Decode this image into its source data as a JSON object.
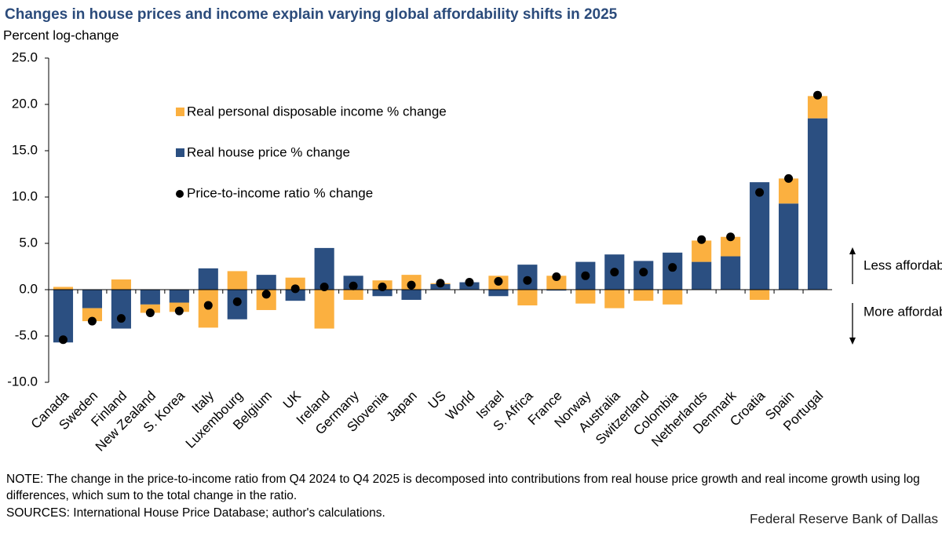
{
  "chart_data": {
    "type": "bar",
    "stacked": true,
    "title": "Changes in house prices and income explain varying global affordability shifts in 2025",
    "y_label": "Percent log-change",
    "categories": [
      "Canada",
      "Sweden",
      "Finland",
      "New Zealand",
      "S. Korea",
      "Italy",
      "Luxembourg",
      "Belgium",
      "UK",
      "Ireland",
      "Germany",
      "Slovenia",
      "Japan",
      "US",
      "World",
      "Israel",
      "S. Africa",
      "France",
      "Norway",
      "Australia",
      "Switzerland",
      "Colombia",
      "Netherlands",
      "Denmark",
      "Croatia",
      "Spain",
      "Portugal"
    ],
    "series": [
      {
        "name": "Real house price % change",
        "color": "#2b4f81",
        "values": [
          -5.7,
          -2.0,
          -4.2,
          -1.6,
          -1.4,
          2.3,
          -3.2,
          1.6,
          -1.2,
          4.5,
          1.5,
          -0.7,
          -1.1,
          0.6,
          0.8,
          -0.7,
          2.7,
          -0.1,
          3.0,
          3.8,
          3.1,
          4.0,
          3.0,
          3.6,
          11.6,
          9.3,
          18.5
        ]
      },
      {
        "name": "Real personal disposable income % change",
        "color": "#fbb040",
        "values": [
          0.3,
          -1.4,
          1.1,
          -0.9,
          -1.0,
          -4.1,
          2.0,
          -2.2,
          1.3,
          -4.2,
          -1.1,
          1.0,
          1.6,
          0.1,
          0.0,
          1.5,
          -1.7,
          1.5,
          -1.5,
          -2.0,
          -1.2,
          -1.6,
          2.3,
          2.1,
          -1.1,
          2.7,
          2.4
        ]
      },
      {
        "name": "Price-to-income ratio % change",
        "color": "#000000",
        "type": "scatter",
        "values": [
          -5.4,
          -3.4,
          -3.1,
          -2.5,
          -2.3,
          -1.7,
          -1.3,
          -0.5,
          0.1,
          0.3,
          0.4,
          0.3,
          0.5,
          0.7,
          0.8,
          0.9,
          1.0,
          1.4,
          1.5,
          1.9,
          1.9,
          2.4,
          5.4,
          5.7,
          10.5,
          12.0,
          21.0
        ]
      }
    ],
    "ylim": [
      -10,
      25
    ],
    "yticks": [
      {
        "value": -10,
        "label": "-10.0"
      },
      {
        "value": -5,
        "label": "-5.0"
      },
      {
        "value": 0,
        "label": "0.0"
      },
      {
        "value": 5,
        "label": "5.0"
      },
      {
        "value": 10,
        "label": "10.0"
      },
      {
        "value": 15,
        "label": "15.0"
      },
      {
        "value": 20,
        "label": "20.0"
      },
      {
        "value": 25,
        "label": "25.0"
      }
    ],
    "annotations": [
      "Less affordable",
      "More affordable"
    ],
    "note": "NOTE: The change in the price-to-income ratio from Q4 2024 to Q4 2025 is decomposed into contributions from real house price growth and real income growth using log differences, which sum to the total change in the ratio.",
    "sources": "SOURCES: International House Price Database; author's calculations.",
    "credit": "Federal Reserve Bank of Dallas"
  }
}
